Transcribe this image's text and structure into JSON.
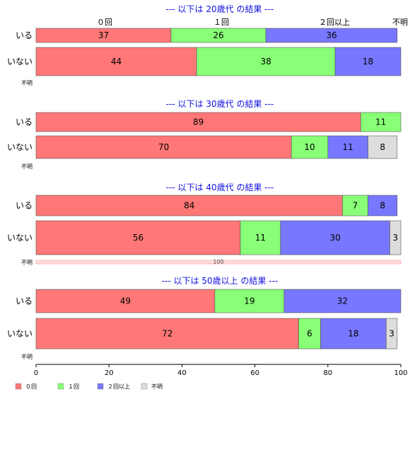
{
  "chart_data": {
    "type": "bar",
    "orientation": "horizontal-stacked-percent",
    "categories_legend": [
      "０回",
      "１回",
      "２回以上",
      "不明"
    ],
    "colors": [
      "#ff7777",
      "#88ff77",
      "#7777ff",
      "#dddddd"
    ],
    "top_category_labels": [
      "０回",
      "１回",
      "２回以上",
      "不明"
    ],
    "xlim": [
      0,
      100
    ],
    "xticks": [
      0,
      20,
      40,
      60,
      80,
      100
    ],
    "panels": [
      {
        "title": "--- 以下は 20歳代 の結果 ---",
        "rows": [
          {
            "label": "いる",
            "values": [
              37,
              26,
              36,
              0
            ]
          },
          {
            "label": "いない",
            "values": [
              44,
              38,
              18,
              0
            ]
          },
          {
            "label": "不明",
            "values": [
              0,
              0,
              0,
              0
            ]
          }
        ]
      },
      {
        "title": "--- 以下は 30歳代 の結果 ---",
        "rows": [
          {
            "label": "いる",
            "values": [
              89,
              11,
              0,
              0
            ]
          },
          {
            "label": "いない",
            "values": [
              70,
              10,
              11,
              8
            ]
          },
          {
            "label": "不明",
            "values": [
              0,
              0,
              0,
              0
            ]
          }
        ]
      },
      {
        "title": "--- 以下は 40歳代 の結果 ---",
        "rows": [
          {
            "label": "いる",
            "values": [
              84,
              7,
              8,
              0
            ]
          },
          {
            "label": "いない",
            "values": [
              56,
              11,
              30,
              3
            ]
          },
          {
            "label": "不明",
            "values": [
              100,
              0,
              0,
              0
            ]
          }
        ]
      },
      {
        "title": "--- 以下は 50歳以上 の結果 ---",
        "rows": [
          {
            "label": "いる",
            "values": [
              49,
              19,
              32,
              0
            ]
          },
          {
            "label": "いない",
            "values": [
              72,
              6,
              18,
              3
            ]
          },
          {
            "label": "不明",
            "values": [
              0,
              0,
              0,
              0
            ]
          }
        ]
      }
    ]
  }
}
